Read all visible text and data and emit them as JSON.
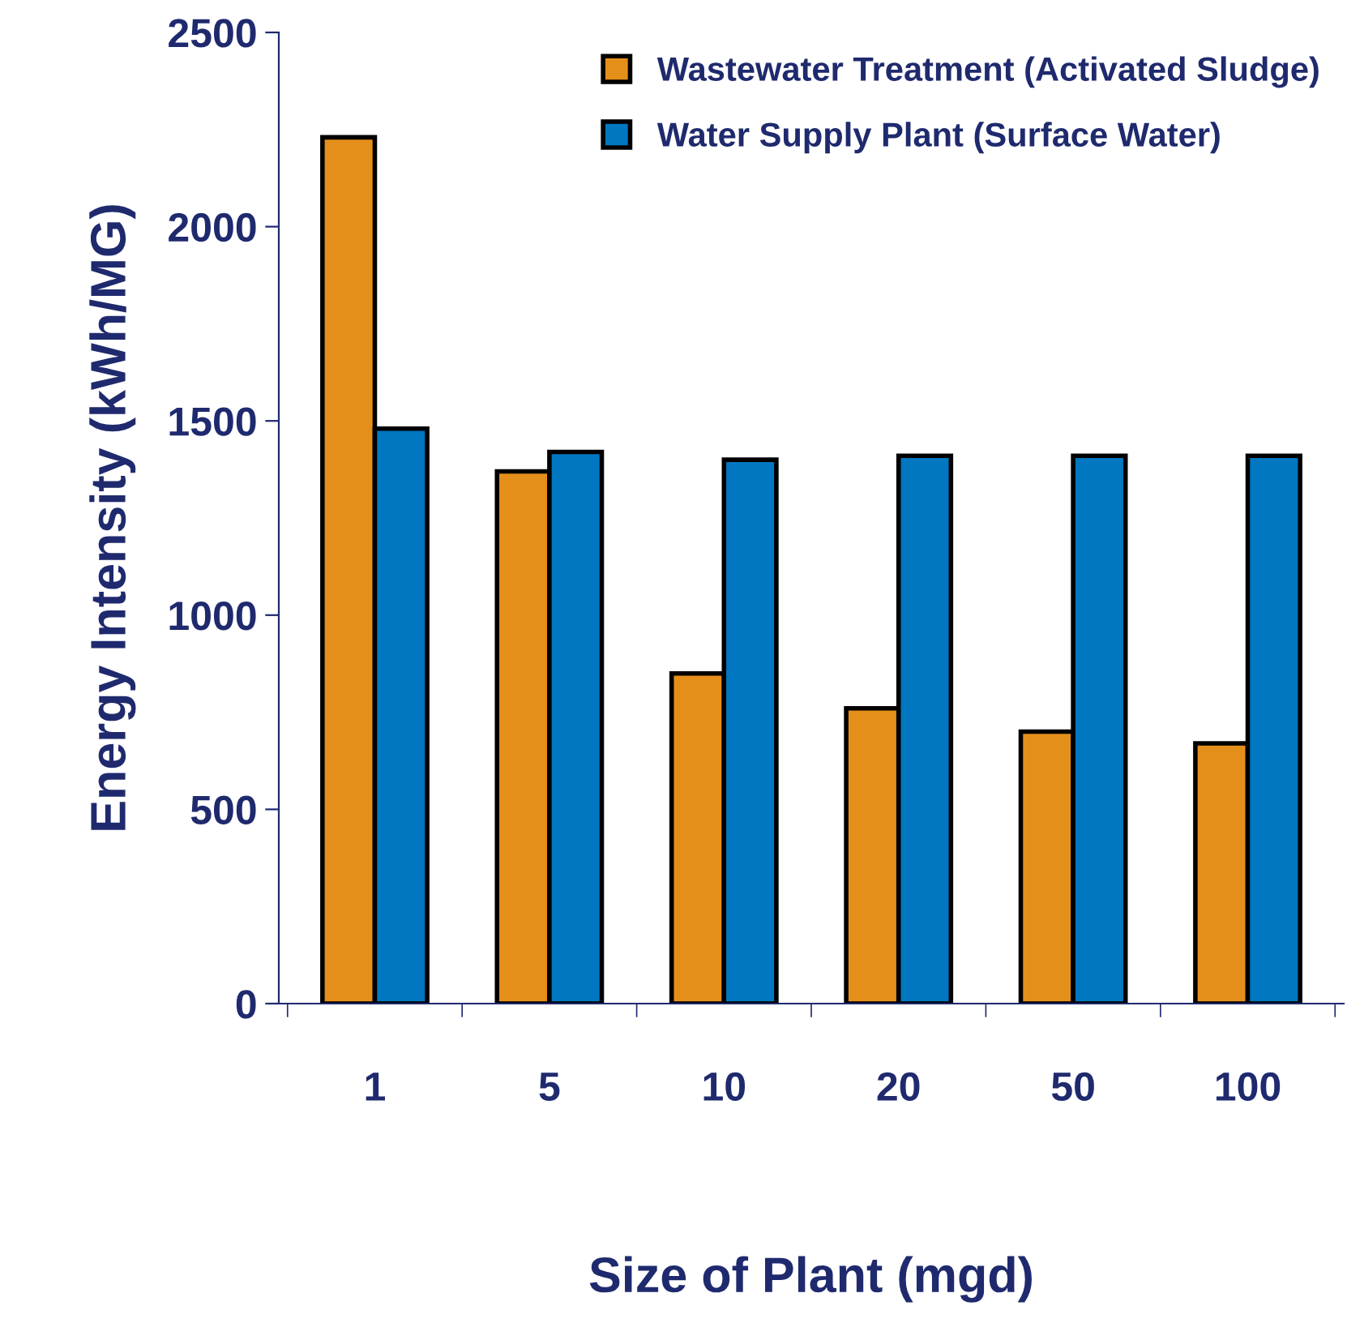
{
  "chart_data": {
    "type": "bar",
    "xlabel": "Size of Plant (mgd)",
    "ylabel": "Energy Intensity (kWh/MG)",
    "categories": [
      "1",
      "5",
      "10",
      "20",
      "50",
      "100"
    ],
    "series": [
      {
        "name": "Wastewater Treatment (Activated Sludge)",
        "color": "#e58f1b",
        "values": [
          2230,
          1370,
          850,
          760,
          700,
          670
        ]
      },
      {
        "name": "Water Supply Plant (Surface Water)",
        "color": "#0077c0",
        "values": [
          1480,
          1420,
          1400,
          1410,
          1410,
          1410
        ]
      }
    ],
    "ylim": [
      0,
      2500
    ],
    "yticks": [
      0,
      500,
      1000,
      1500,
      2000,
      2500
    ],
    "grid": false,
    "legend": "top right"
  }
}
